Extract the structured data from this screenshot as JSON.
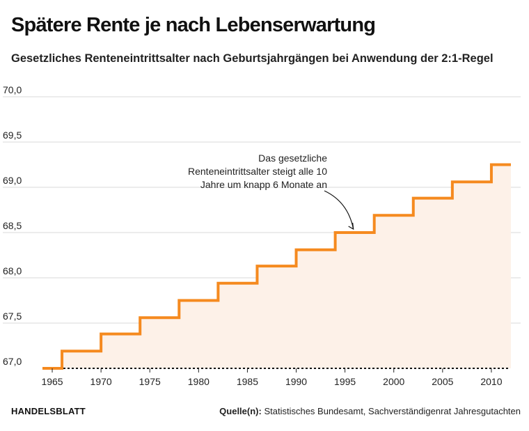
{
  "header": {
    "title": "Spätere Rente je nach Lebenserwartung",
    "subtitle": "Gesetzliches Renteneintrittsalter nach Geburtsjahrgängen bei Anwendung der 2:1-Regel"
  },
  "footer": {
    "brand": "HANDELSBLATT",
    "source_label": "Quelle(n):",
    "source_text": "Statistisches Bundesamt, Sachverständigenrat Jahresgutachten"
  },
  "colors": {
    "line": "#f58a1f",
    "area": "#fdf1e8",
    "grid": "#d9d9d9",
    "baseline": "#111111"
  },
  "chart_data": {
    "type": "line",
    "step": true,
    "title": "Spätere Rente je nach Lebenserwartung",
    "subtitle": "Gesetzliches Renteneintrittsalter nach Geburtsjahrgängen bei Anwendung der 2:1-Regel",
    "xlabel": "",
    "ylabel": "",
    "xlim": [
      1963.5,
      2013
    ],
    "ylim": [
      67.0,
      70.0
    ],
    "x_ticks": [
      1965,
      1970,
      1975,
      1980,
      1985,
      1990,
      1995,
      2000,
      2005,
      2010
    ],
    "y_ticks": [
      67.0,
      67.5,
      68.0,
      68.5,
      69.0,
      69.5,
      70.0
    ],
    "y_tick_labels": [
      "67,0",
      "67,5",
      "68,0",
      "68,5",
      "69,0",
      "69,5",
      "70,0"
    ],
    "grid": true,
    "area_fill": true,
    "series": [
      {
        "x": [
          1964,
          1966,
          1966,
          1970,
          1970,
          1974,
          1974,
          1978,
          1978,
          1982,
          1982,
          1986,
          1986,
          1990,
          1990,
          1994,
          1994,
          1998,
          1998,
          2002,
          2002,
          2006,
          2006,
          2010,
          2010,
          2012
        ],
        "values": [
          67.0,
          67.0,
          67.19,
          67.19,
          67.38,
          67.38,
          67.56,
          67.56,
          67.75,
          67.75,
          67.94,
          67.94,
          68.13,
          68.13,
          68.31,
          68.31,
          68.5,
          68.5,
          68.69,
          68.69,
          68.88,
          68.88,
          69.06,
          69.06,
          69.25,
          69.25
        ]
      }
    ],
    "annotation": {
      "lines": [
        "Das gesetzliche",
        "Renteneintrittsalter steigt alle 10",
        "Jahre um knapp 6 Monate an"
      ],
      "target_x": 1996,
      "target_y": 68.5
    }
  }
}
